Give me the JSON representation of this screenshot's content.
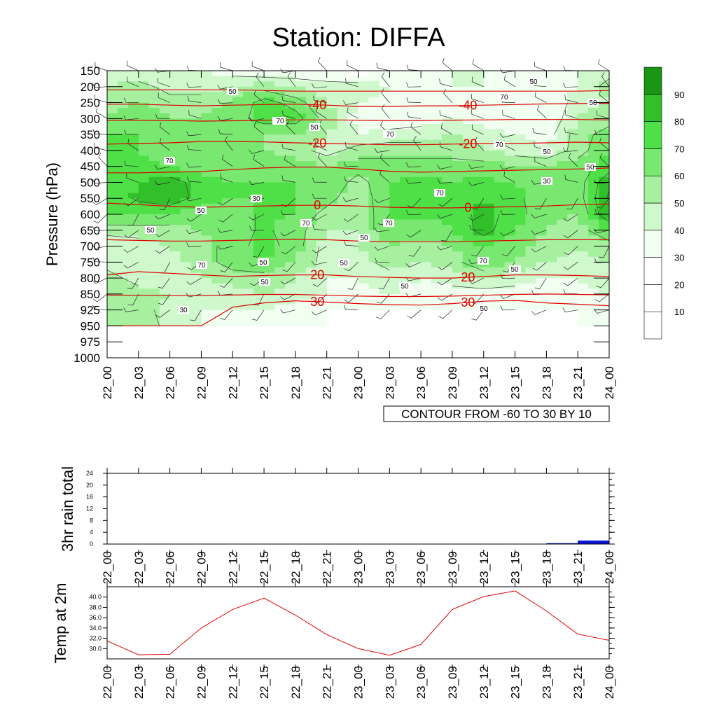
{
  "title": "Station: DIFFA",
  "time_labels": [
    "22_00",
    "22_03",
    "22_06",
    "22_09",
    "22_12",
    "22_15",
    "22_18",
    "22_21",
    "23_00",
    "23_03",
    "23_06",
    "23_09",
    "23_12",
    "23_15",
    "23_18",
    "23_21",
    "24_00"
  ],
  "colors": {
    "humidity_levels": [
      "#ffffff",
      "#ffffff",
      "#ffffff",
      "#f0fff0",
      "#cff8cc",
      "#a6f0a0",
      "#78e870",
      "#4ee046",
      "#32c02a",
      "#1a9614"
    ],
    "temp_line": "#e00000",
    "rain_bar": "#0a14d2",
    "temp2m_line": "#e00000"
  },
  "chart_data": [
    {
      "type": "heatmap",
      "name": "humidity-cross-section",
      "title": "Station: DIFFA",
      "ylabel": "Pressure (hPa)",
      "x": [
        "22_00",
        "22_03",
        "22_06",
        "22_09",
        "22_12",
        "22_15",
        "22_18",
        "22_21",
        "23_00",
        "23_03",
        "23_06",
        "23_09",
        "23_12",
        "23_15",
        "23_18",
        "23_21",
        "24_00"
      ],
      "y_levels": [
        150,
        200,
        250,
        300,
        350,
        400,
        450,
        500,
        550,
        600,
        650,
        700,
        750,
        800,
        850,
        925,
        950,
        975,
        1000
      ],
      "colorbar": {
        "levels": [
          10,
          20,
          30,
          40,
          50,
          60,
          70,
          80,
          90
        ],
        "labels": [
          "10",
          "20",
          "30",
          "40",
          "50",
          "60",
          "70",
          "80",
          "90"
        ],
        "range": [
          0,
          100
        ]
      },
      "humidity_grid_levels": [
        150,
        200,
        250,
        300,
        350,
        400,
        450,
        500,
        550,
        600,
        650,
        700,
        750,
        800,
        850,
        925,
        950
      ],
      "humidity": [
        [
          40,
          40,
          40,
          40,
          35,
          30,
          30,
          30,
          25,
          30,
          35,
          40,
          40,
          30,
          40,
          40,
          45
        ],
        [
          50,
          55,
          45,
          45,
          50,
          55,
          50,
          45,
          45,
          40,
          35,
          40,
          40,
          30,
          30,
          40,
          55
        ],
        [
          55,
          60,
          55,
          55,
          60,
          75,
          65,
          50,
          40,
          35,
          35,
          40,
          35,
          30,
          30,
          45,
          50
        ],
        [
          60,
          65,
          60,
          60,
          65,
          75,
          75,
          55,
          35,
          30,
          35,
          40,
          35,
          30,
          30,
          50,
          55
        ],
        [
          70,
          70,
          65,
          65,
          60,
          60,
          60,
          50,
          40,
          45,
          45,
          50,
          45,
          40,
          35,
          55,
          65
        ],
        [
          70,
          70,
          65,
          65,
          60,
          60,
          55,
          45,
          55,
          55,
          55,
          55,
          50,
          45,
          40,
          55,
          70
        ],
        [
          70,
          72,
          70,
          65,
          65,
          65,
          65,
          60,
          65,
          65,
          65,
          65,
          65,
          60,
          60,
          65,
          75
        ],
        [
          72,
          80,
          85,
          75,
          70,
          70,
          70,
          70,
          55,
          70,
          72,
          70,
          72,
          70,
          68,
          65,
          88
        ],
        [
          72,
          82,
          88,
          75,
          70,
          70,
          70,
          65,
          50,
          72,
          75,
          72,
          80,
          72,
          65,
          65,
          92
        ],
        [
          70,
          72,
          70,
          65,
          65,
          72,
          70,
          55,
          50,
          70,
          72,
          72,
          85,
          75,
          62,
          60,
          90
        ],
        [
          55,
          55,
          55,
          60,
          65,
          72,
          65,
          50,
          50,
          70,
          65,
          70,
          85,
          70,
          60,
          55,
          70
        ],
        [
          40,
          45,
          50,
          55,
          65,
          75,
          65,
          45,
          50,
          60,
          55,
          60,
          70,
          65,
          55,
          50,
          55
        ],
        [
          45,
          40,
          45,
          55,
          65,
          70,
          60,
          45,
          45,
          55,
          50,
          55,
          72,
          60,
          50,
          45,
          50
        ],
        [
          55,
          45,
          45,
          50,
          55,
          55,
          50,
          40,
          40,
          45,
          40,
          45,
          50,
          45,
          40,
          40,
          45
        ],
        [
          60,
          55,
          50,
          45,
          45,
          50,
          45,
          40,
          35,
          40,
          35,
          35,
          35,
          35,
          35,
          35,
          40
        ],
        [
          60,
          55,
          45,
          40,
          40,
          40,
          35,
          30,
          30,
          30,
          30,
          30,
          30,
          30,
          30,
          30,
          35
        ],
        [
          60,
          60,
          45,
          40,
          35,
          35,
          30,
          30,
          25,
          25,
          25,
          25,
          25,
          25,
          25,
          30,
          30
        ]
      ],
      "contour_text": "CONTOUR FROM -60 TO 30 BY 10",
      "temperature_contours": [
        {
          "label": "-40",
          "pressure": [
            255,
            255,
            258,
            260,
            258,
            256,
            255,
            258,
            262,
            262,
            260,
            260,
            258,
            256,
            254,
            253,
            252
          ]
        },
        {
          "label": "-20",
          "pressure": [
            380,
            378,
            376,
            372,
            372,
            373,
            376,
            378,
            380,
            382,
            382,
            380,
            378,
            378,
            376,
            374,
            376
          ]
        },
        {
          "label": "0",
          "pressure": [
            565,
            570,
            575,
            578,
            576,
            574,
            572,
            572,
            574,
            578,
            580,
            580,
            578,
            576,
            574,
            570,
            568
          ]
        },
        {
          "label": "20",
          "pressure": [
            790,
            780,
            785,
            790,
            795,
            792,
            790,
            790,
            795,
            798,
            800,
            800,
            795,
            790,
            790,
            792,
            795
          ]
        },
        {
          "label": "30",
          "pressure": [
            950,
            950,
            950,
            950,
            912,
            892,
            882,
            888,
            895,
            900,
            902,
            895,
            884,
            880,
            892,
            898,
            905
          ]
        },
        {
          "label": "",
          "pressure": [
            210,
            210,
            210,
            210,
            210,
            212,
            214,
            214,
            214,
            214,
            214,
            214,
            214,
            214,
            214,
            214,
            212
          ]
        },
        {
          "label": "",
          "pressure": [
            305,
            305,
            306,
            308,
            307,
            305,
            304,
            304,
            305,
            306,
            306,
            305,
            304,
            303,
            303,
            303,
            304
          ]
        },
        {
          "label": "",
          "pressure": [
            470,
            470,
            468,
            466,
            460,
            455,
            452,
            452,
            458,
            465,
            468,
            466,
            464,
            462,
            460,
            458,
            455
          ]
        },
        {
          "label": "",
          "pressure": [
            680,
            682,
            684,
            684,
            682,
            680,
            678,
            680,
            684,
            686,
            686,
            686,
            684,
            682,
            680,
            680,
            680
          ]
        },
        {
          "label": "",
          "pressure": [
            855,
            856,
            858,
            858,
            855,
            852,
            852,
            856,
            860,
            862,
            862,
            860,
            856,
            852,
            850,
            852,
            854
          ]
        }
      ],
      "inline_labels": [
        "50",
        "70",
        "50",
        "70",
        "50",
        "30",
        "50",
        "70",
        "50",
        "70",
        "50",
        "50",
        "50",
        "70",
        "70",
        "70",
        "50",
        "50",
        "70",
        "50",
        "70",
        "50",
        "30",
        "50",
        "70",
        "50",
        "50",
        "50",
        "70",
        "70",
        "50",
        "30"
      ]
    },
    {
      "type": "bar",
      "name": "rain",
      "ylabel": "3hr rain total",
      "categories": [
        "22_00",
        "22_03",
        "22_06",
        "22_09",
        "22_12",
        "22_15",
        "22_18",
        "22_21",
        "23_00",
        "23_03",
        "23_06",
        "23_09",
        "23_12",
        "23_15",
        "23_18",
        "23_21",
        "24_00"
      ],
      "values": [
        0,
        0,
        0,
        0,
        0,
        0,
        0,
        0,
        0,
        0,
        0,
        0,
        0,
        0,
        0.1,
        0.3,
        1.2
      ],
      "ylim": [
        0,
        24
      ],
      "yticks": [
        "0",
        "4",
        "8",
        "12",
        "16",
        "20",
        "24"
      ]
    },
    {
      "type": "line",
      "name": "temp2m",
      "ylabel": "Temp at 2m",
      "categories": [
        "22_00",
        "22_03",
        "22_06",
        "22_09",
        "22_12",
        "22_15",
        "22_18",
        "22_21",
        "23_00",
        "23_03",
        "23_06",
        "23_09",
        "23_12",
        "23_15",
        "23_18",
        "23_21",
        "24_00"
      ],
      "values": [
        31.5,
        28.8,
        28.9,
        34.0,
        37.6,
        39.8,
        36.5,
        32.7,
        30.0,
        28.7,
        30.8,
        37.6,
        40.1,
        41.2,
        37.3,
        32.8,
        31.6
      ],
      "ylim": [
        28.0,
        42.0
      ],
      "yticks": [
        "30.0",
        "32.0",
        "34.0",
        "36.0",
        "38.0",
        "40.0"
      ]
    }
  ]
}
